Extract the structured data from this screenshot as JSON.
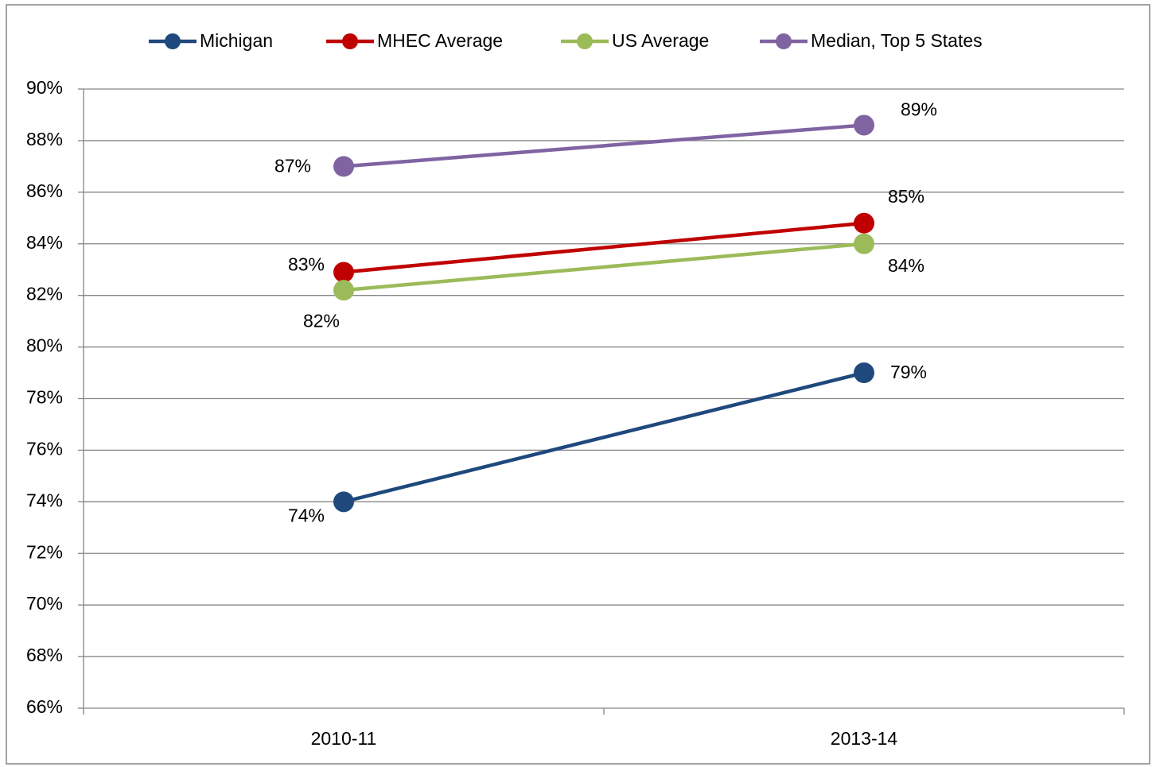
{
  "chart_data": {
    "type": "line",
    "categories": [
      "2010-11",
      "2013-14"
    ],
    "series": [
      {
        "name": "Michigan",
        "color": "#1f497d",
        "values": [
          74.0,
          79.0
        ],
        "value_labels": [
          "74%",
          "79%"
        ]
      },
      {
        "name": "MHEC Average",
        "color": "#c00000",
        "values": [
          82.9,
          84.8
        ],
        "value_labels": [
          "83%",
          "85%"
        ]
      },
      {
        "name": "US Average",
        "color": "#9bbb59",
        "values": [
          82.2,
          84.0
        ],
        "value_labels": [
          "82%",
          "84%"
        ]
      },
      {
        "name": "Median, Top 5 States",
        "color": "#8064a2",
        "values": [
          87.0,
          88.6
        ],
        "value_labels": [
          "87%",
          "89%"
        ]
      }
    ],
    "ylim": [
      66,
      90
    ],
    "yticks": [
      {
        "value": 66,
        "label": "66%"
      },
      {
        "value": 68,
        "label": "68%"
      },
      {
        "value": 70,
        "label": "70%"
      },
      {
        "value": 72,
        "label": "72%"
      },
      {
        "value": 74,
        "label": "74%"
      },
      {
        "value": 76,
        "label": "76%"
      },
      {
        "value": 78,
        "label": "78%"
      },
      {
        "value": 80,
        "label": "80%"
      },
      {
        "value": 82,
        "label": "82%"
      },
      {
        "value": 84,
        "label": "84%"
      },
      {
        "value": 86,
        "label": "86%"
      },
      {
        "value": 88,
        "label": "88%"
      },
      {
        "value": 90,
        "label": "90%"
      }
    ],
    "grid": true,
    "legend": "top"
  }
}
